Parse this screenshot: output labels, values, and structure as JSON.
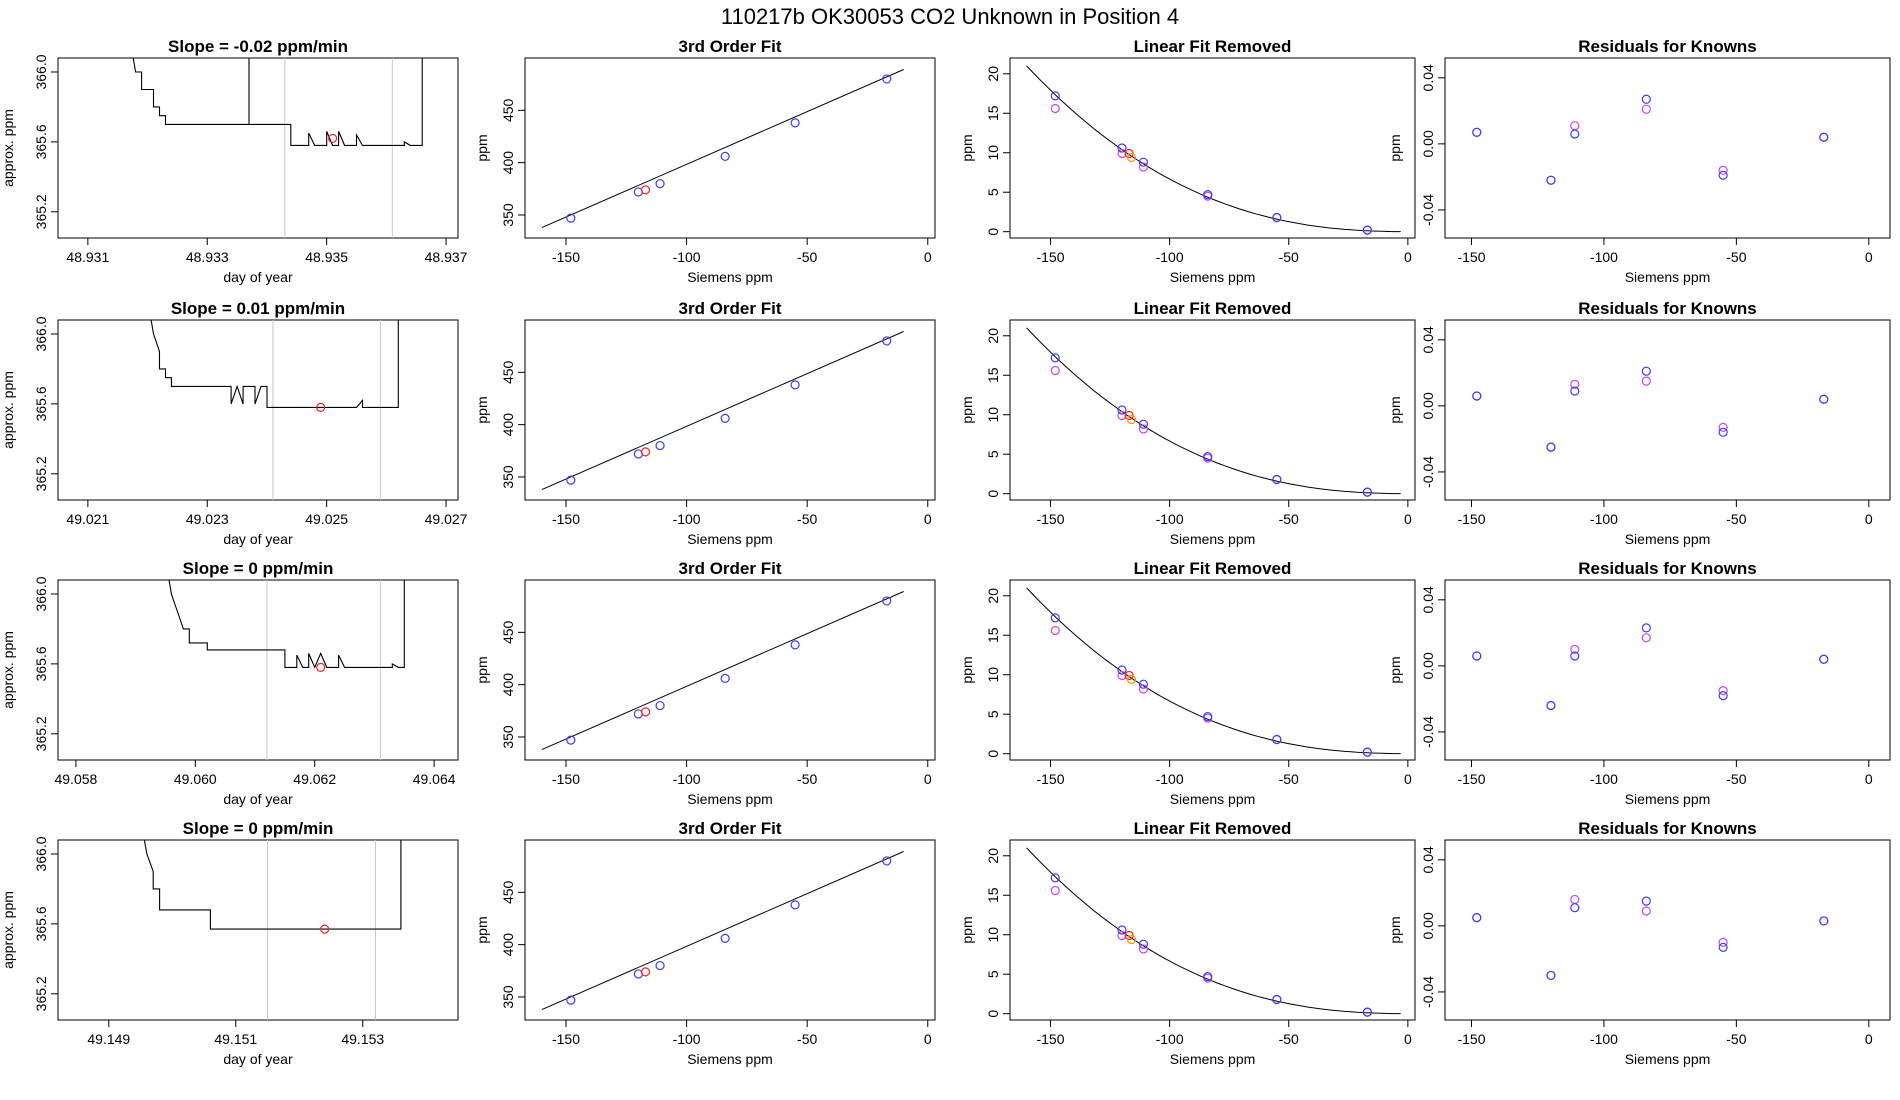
{
  "page_title": "110217b     OK30053   CO2 Unknown in Position  4",
  "colors": {
    "known": "#3b3bff",
    "knownAlt": "#cc44ee",
    "unknown": "#ff2020",
    "unknownAlt": "#ff9a00",
    "line": "#000000",
    "guide": "#c8c8c8"
  },
  "shared": {
    "fit_title": "3rd Order Fit",
    "lin_title": "Linear Fit Removed",
    "res_title": "Residuals for Knowns",
    "siemens_label": "Siemens ppm",
    "ppm_label": "ppm",
    "approx_label": "approx. ppm",
    "day_label": "day of year",
    "siemens_x": [
      -148,
      -120,
      -111,
      -84,
      -55,
      -17
    ],
    "fit_y": [
      347,
      372,
      380,
      406,
      438,
      480
    ],
    "unknown_fit": {
      "x": -117,
      "y": 374
    },
    "lin_known": [
      17.2,
      10.6,
      8.8,
      4.7,
      1.8,
      0.2
    ],
    "lin_known_alt": [
      15.6,
      9.9,
      8.2,
      4.5,
      1.8,
      0.2
    ],
    "unknown_lin": {
      "x": -117,
      "y": 9.9,
      "y_alt": 9.4
    }
  },
  "chart_data": [
    {
      "type": "line",
      "slope_title": "Slope =  -0.02  ppm/min",
      "x_ticks": [
        "48.931",
        "48.933",
        "48.935",
        "48.937"
      ],
      "x_range": [
        48.9305,
        48.9372
      ],
      "guides": [
        48.9343,
        48.9361
      ],
      "unknown_point": {
        "x": 48.9351,
        "y": 365.62
      },
      "trace": [
        [
          48.9317,
          366.2
        ],
        [
          48.9318,
          366.0
        ],
        [
          48.9319,
          366.0
        ],
        [
          48.9319,
          365.9
        ],
        [
          48.9321,
          365.9
        ],
        [
          48.9321,
          365.8
        ],
        [
          48.9322,
          365.8
        ],
        [
          48.9322,
          365.75
        ],
        [
          48.9323,
          365.75
        ],
        [
          48.9323,
          365.7
        ],
        [
          48.9337,
          365.7
        ],
        [
          48.9337,
          366.2
        ],
        [
          48.9337,
          365.7
        ],
        [
          48.9344,
          365.7
        ],
        [
          48.9344,
          365.58
        ],
        [
          48.9347,
          365.58
        ],
        [
          48.9347,
          365.65
        ],
        [
          48.9348,
          365.58
        ],
        [
          48.935,
          365.58
        ],
        [
          48.935,
          365.66
        ],
        [
          48.9351,
          365.58
        ],
        [
          48.9352,
          365.58
        ],
        [
          48.9352,
          365.66
        ],
        [
          48.9353,
          365.58
        ],
        [
          48.9355,
          365.58
        ],
        [
          48.9355,
          365.64
        ],
        [
          48.9356,
          365.58
        ],
        [
          48.9363,
          365.58
        ],
        [
          48.9363,
          365.6
        ],
        [
          48.9364,
          365.58
        ],
        [
          48.9366,
          365.58
        ],
        [
          48.9366,
          366.2
        ]
      ],
      "residual_known": [
        0.007,
        -0.022,
        0.006,
        0.027,
        -0.019,
        0.004
      ],
      "residual_known_alt": [
        0.007,
        -0.022,
        0.011,
        0.021,
        -0.016,
        0.004
      ]
    },
    {
      "type": "line",
      "slope_title": "Slope =  0.01  ppm/min",
      "x_ticks": [
        "49.021",
        "49.023",
        "49.025",
        "49.027"
      ],
      "x_range": [
        49.0205,
        49.0272
      ],
      "guides": [
        49.0241,
        49.0259
      ],
      "unknown_point": {
        "x": 49.0249,
        "y": 365.58
      },
      "trace": [
        [
          49.022,
          366.2
        ],
        [
          49.0221,
          366.0
        ],
        [
          49.0222,
          365.9
        ],
        [
          49.0222,
          365.8
        ],
        [
          49.0223,
          365.8
        ],
        [
          49.0223,
          365.75
        ],
        [
          49.0224,
          365.75
        ],
        [
          49.0224,
          365.7
        ],
        [
          49.0234,
          365.7
        ],
        [
          49.0234,
          365.6
        ],
        [
          49.0235,
          365.7
        ],
        [
          49.0236,
          365.6
        ],
        [
          49.0236,
          365.7
        ],
        [
          49.0238,
          365.7
        ],
        [
          49.0238,
          365.6
        ],
        [
          49.0239,
          365.7
        ],
        [
          49.024,
          365.7
        ],
        [
          49.024,
          365.58
        ],
        [
          49.0255,
          365.58
        ],
        [
          49.0256,
          365.62
        ],
        [
          49.0256,
          365.58
        ],
        [
          49.0262,
          365.58
        ],
        [
          49.0262,
          366.2
        ]
      ],
      "residual_known": [
        0.006,
        -0.025,
        0.009,
        0.021,
        -0.016,
        0.004
      ],
      "residual_known_alt": [
        0.006,
        -0.025,
        0.013,
        0.015,
        -0.013,
        0.004
      ]
    },
    {
      "type": "line",
      "slope_title": "Slope =  0  ppm/min",
      "x_ticks": [
        "49.058",
        "49.060",
        "49.062",
        "49.064"
      ],
      "x_range": [
        49.0577,
        49.0644
      ],
      "guides": [
        49.0612,
        49.0631
      ],
      "unknown_point": {
        "x": 49.0621,
        "y": 365.58
      },
      "trace": [
        [
          49.0595,
          366.2
        ],
        [
          49.0596,
          366.0
        ],
        [
          49.0597,
          365.9
        ],
        [
          49.0598,
          365.8
        ],
        [
          49.0599,
          365.8
        ],
        [
          49.0599,
          365.72
        ],
        [
          49.0602,
          365.72
        ],
        [
          49.0602,
          365.68
        ],
        [
          49.0615,
          365.68
        ],
        [
          49.0615,
          365.58
        ],
        [
          49.0617,
          365.58
        ],
        [
          49.0617,
          365.65
        ],
        [
          49.0618,
          365.58
        ],
        [
          49.0619,
          365.58
        ],
        [
          49.0619,
          365.66
        ],
        [
          49.062,
          365.58
        ],
        [
          49.0621,
          365.66
        ],
        [
          49.0622,
          365.58
        ],
        [
          49.0624,
          365.58
        ],
        [
          49.0624,
          365.65
        ],
        [
          49.0625,
          365.58
        ],
        [
          49.0633,
          365.58
        ],
        [
          49.0633,
          365.6
        ],
        [
          49.0634,
          365.58
        ],
        [
          49.0635,
          365.58
        ],
        [
          49.0635,
          366.2
        ]
      ],
      "residual_known": [
        0.006,
        -0.024,
        0.006,
        0.023,
        -0.018,
        0.004
      ],
      "residual_known_alt": [
        0.006,
        -0.024,
        0.01,
        0.017,
        -0.015,
        0.004
      ]
    },
    {
      "type": "line",
      "slope_title": "Slope =  0  ppm/min",
      "x_ticks": [
        "49.149",
        "49.151",
        "49.153"
      ],
      "x_range": [
        49.1482,
        49.1545
      ],
      "guides": [
        49.1515,
        49.1532
      ],
      "unknown_point": {
        "x": 49.1524,
        "y": 365.57
      },
      "trace": [
        [
          49.1495,
          366.2
        ],
        [
          49.1496,
          366.0
        ],
        [
          49.1497,
          365.9
        ],
        [
          49.1497,
          365.8
        ],
        [
          49.1498,
          365.8
        ],
        [
          49.1498,
          365.68
        ],
        [
          49.1506,
          365.68
        ],
        [
          49.1506,
          365.57
        ],
        [
          49.1536,
          365.57
        ],
        [
          49.1536,
          366.2
        ]
      ],
      "residual_known": [
        0.005,
        -0.03,
        0.011,
        0.015,
        -0.013,
        0.003
      ],
      "residual_known_alt": [
        0.005,
        -0.03,
        0.016,
        0.009,
        -0.01,
        0.003
      ]
    }
  ]
}
